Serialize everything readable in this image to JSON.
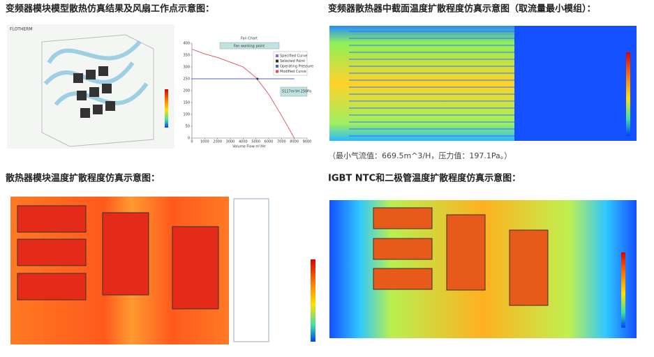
{
  "panels": [
    {
      "title": "变频器模块模型散热仿真结果及风扇工作点示意图："
    },
    {
      "title": "变频器散热器中截面温度扩散程度仿真示意图（取流量最小模组）：",
      "caption": "（最小气流值：669.5m^3/H，压力值：197.1Pa。）"
    },
    {
      "title": "散热器模块温度扩散程度仿真示意图："
    },
    {
      "title": "IGBT NTC和二极管温度扩散程度仿真示意图："
    }
  ],
  "software_label": "FLOTHERM",
  "chart_data": {
    "type": "line",
    "title": "Fan Chart",
    "subtitle": "Fan working point",
    "x_label": "Volume Flow m³/Hr",
    "x": [
      0,
      1000,
      2000,
      3000,
      4000,
      5000,
      6000,
      7000,
      8000
    ],
    "series": [
      {
        "name": "Operating Pressure",
        "color": "#5060c8",
        "values": [
          250,
          250,
          250,
          250,
          250,
          250,
          250,
          250,
          250
        ]
      },
      {
        "name": "Modified Curve",
        "color": "#d8505a",
        "values": [
          375,
          355,
          340,
          320,
          300,
          255,
          185,
          95,
          0
        ]
      }
    ],
    "markers": [
      {
        "name": "Specified Curve",
        "color": "#8a6bbf"
      },
      {
        "name": "Selected Point",
        "color": "#333333"
      }
    ],
    "selected_point": {
      "x": 5117,
      "y": 250,
      "label": "5117m³/H 250Pa"
    },
    "xlim": [
      0,
      9000
    ],
    "xticks": [
      0,
      1000,
      2000,
      3000,
      4000,
      5000,
      6000,
      7000,
      8000,
      9000
    ],
    "ylim": [
      0,
      400
    ],
    "yticks": [
      0,
      50,
      100,
      150,
      200,
      250,
      300,
      350,
      400
    ],
    "grid": false
  }
}
